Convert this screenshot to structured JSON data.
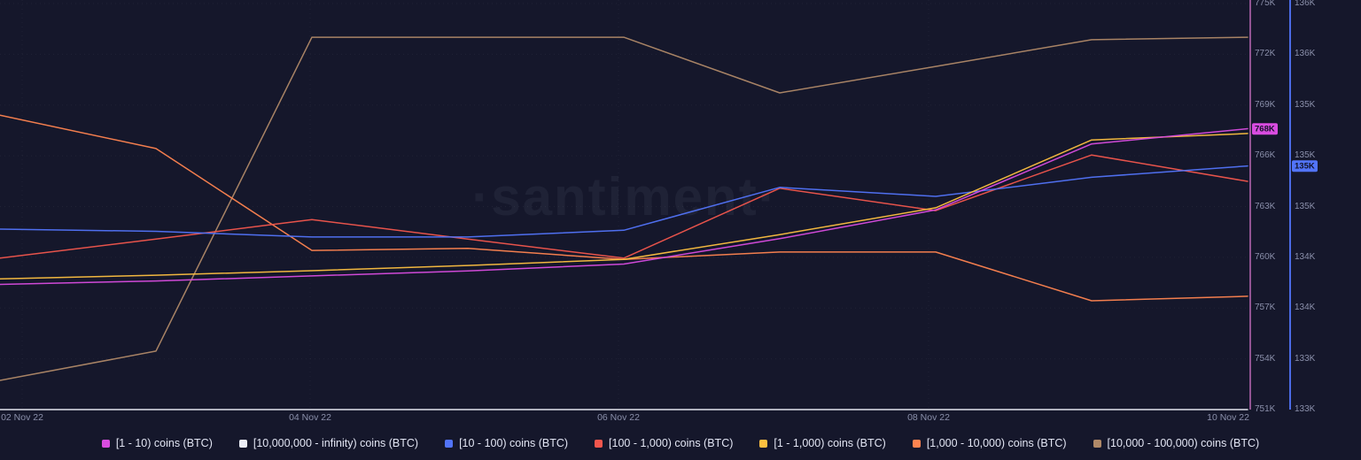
{
  "watermark": "·santiment·",
  "colors": {
    "background": "#15172b",
    "grid": "rgba(255,255,255,0.05)",
    "axis_text": "#8b90ab",
    "primary_axis_line": "#b164ae",
    "secondary_axis_line": "#5274fa",
    "badge_text": "#101226",
    "legend_text": "#e2e5f3"
  },
  "chart_data": {
    "type": "line",
    "title": "",
    "watermark": "·santiment·",
    "grid": "dotted",
    "legend_position": "bottom-center",
    "x_dates": [
      "02 Nov 22",
      "03 Nov 22",
      "04 Nov 22",
      "05 Nov 22",
      "06 Nov 22",
      "07 Nov 22",
      "08 Nov 22",
      "09 Nov 22",
      "10 Nov 22"
    ],
    "x_axis_labels": [
      "02 Nov 22",
      "04 Nov 22",
      "06 Nov 22",
      "08 Nov 22",
      "10 Nov 22"
    ],
    "right_axis_primary": {
      "series": "[1 - 10) coins (BTC)",
      "color": "#d94ce0",
      "ticks": [
        "775K",
        "772K",
        "769K",
        "766K",
        "763K",
        "760K",
        "757K",
        "754K",
        "751K"
      ],
      "range_thousand_btc": [
        751,
        775
      ],
      "current_value_badge": "768K"
    },
    "right_axis_secondary": {
      "series": "[10 - 100) coins (BTC)",
      "color": "#5274fa",
      "ticks": [
        "136K",
        "136K",
        "135K",
        "135K",
        "135K",
        "134K",
        "134K",
        "133K",
        "133K"
      ],
      "range_thousand_btc": [
        133.2,
        136.8
      ],
      "current_value_badge": "135K"
    },
    "series": [
      {
        "name": "[1 - 10) coins (BTC)",
        "color": "#d94ce0",
        "axis": "primary",
        "unit": "thousand BTC",
        "scale": [
          751,
          775
        ],
        "values": [
          758.4,
          758.6,
          758.9,
          759.2,
          759.6,
          761.1,
          762.8,
          766.7,
          767.6
        ]
      },
      {
        "name": "[10,000,000 - infinity) coins (BTC)",
        "color": "#eceef8",
        "axis": "hidden",
        "unit": "percent of plot height (hidden axis, flat at zero)",
        "scale": [
          0,
          100
        ],
        "values": [
          0,
          0,
          0,
          0,
          0,
          0,
          0,
          0,
          0
        ]
      },
      {
        "name": "[10 - 100) coins (BTC)",
        "color": "#5274fa",
        "axis": "secondary",
        "unit": "thousand BTC",
        "scale": [
          133.2,
          136.8
        ],
        "values": [
          134.8,
          134.78,
          134.73,
          134.73,
          134.79,
          135.17,
          135.09,
          135.26,
          135.36
        ]
      },
      {
        "name": "[100 - 1,000) coins (BTC)",
        "color": "#f2564d",
        "axis": "hidden",
        "unit": "percent of plot height (hidden axis)",
        "scale": [
          0,
          100
        ],
        "values": [
          37.3,
          42.0,
          46.8,
          42.0,
          37.3,
          54.5,
          49.0,
          62.7,
          56.2
        ]
      },
      {
        "name": "[1 - 1,000) coins (BTC)",
        "color": "#fdc040",
        "axis": "hidden",
        "unit": "percent of plot height (hidden axis)",
        "scale": [
          0,
          100
        ],
        "values": [
          32.2,
          33.1,
          34.2,
          35.5,
          37.0,
          43.1,
          49.7,
          66.4,
          68.0
        ]
      },
      {
        "name": "[1,000 - 10,000) coins (BTC)",
        "color": "#ff8450",
        "axis": "hidden",
        "unit": "percent of plot height (hidden axis)",
        "scale": [
          0,
          100
        ],
        "values": [
          72.5,
          64.3,
          39.2,
          39.7,
          37.0,
          38.8,
          38.8,
          26.8,
          27.9
        ]
      },
      {
        "name": "[10,000 - 100,000) coins (BTC)",
        "color": "#b08968",
        "axis": "hidden",
        "unit": "percent of plot height (hidden axis)",
        "scale": [
          0,
          100
        ],
        "values": [
          7.2,
          14.4,
          91.7,
          91.7,
          91.7,
          78.0,
          84.5,
          91.1,
          91.7
        ]
      }
    ]
  }
}
